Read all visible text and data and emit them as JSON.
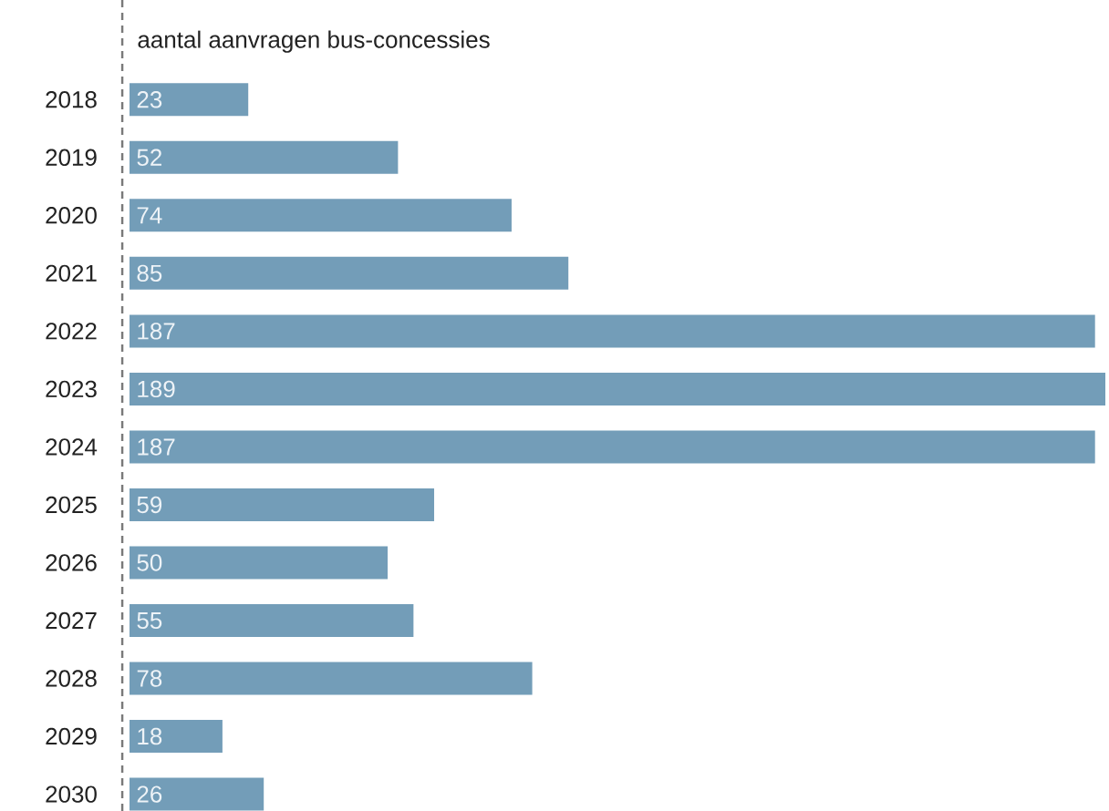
{
  "chart_data": {
    "type": "bar",
    "orientation": "horizontal",
    "title": "aantal aanvragen bus-concessies",
    "categories": [
      "2018",
      "2019",
      "2020",
      "2021",
      "2022",
      "2023",
      "2024",
      "2025",
      "2026",
      "2027",
      "2028",
      "2029",
      "2030"
    ],
    "values": [
      23,
      52,
      74,
      85,
      187,
      189,
      187,
      59,
      50,
      55,
      78,
      18,
      26
    ],
    "color": "#739db8",
    "data_labels": true
  }
}
